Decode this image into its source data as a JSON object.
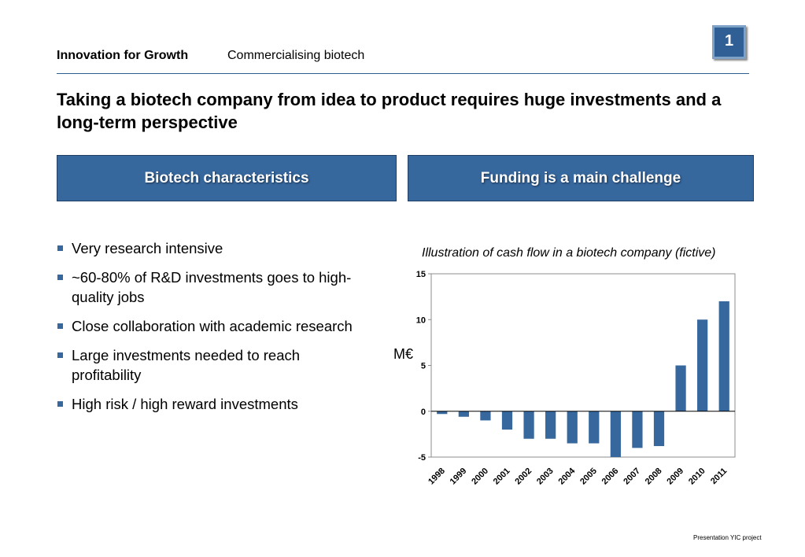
{
  "header": {
    "section": "Innovation for Growth",
    "subtitle": "Commercialising biotech",
    "page_number": "1"
  },
  "title": "Taking a biotech company from idea to product requires huge investments and a long-term perspective",
  "banners": {
    "left": "Biotech characteristics",
    "right": "Funding is a main challenge"
  },
  "bullets": [
    "Very research intensive",
    "~60-80% of R&D investments goes to high-quality jobs",
    "Close collaboration with academic research",
    "Large investments needed to reach profitability",
    "High risk / high reward investments"
  ],
  "chart": {
    "caption": "Illustration of cash flow in a biotech company (fictive)",
    "unit": "M€"
  },
  "chart_data": {
    "type": "bar",
    "categories": [
      "1998",
      "1999",
      "2000",
      "2001",
      "2002",
      "2003",
      "2004",
      "2005",
      "2006",
      "2007",
      "2008",
      "2009",
      "2010",
      "2011"
    ],
    "values": [
      -0.3,
      -0.6,
      -1,
      -2,
      -3,
      -3,
      -3.5,
      -3.5,
      -5,
      -4,
      -3.8,
      5,
      10,
      12
    ],
    "ylim": [
      -5,
      15
    ],
    "yticks": [
      -5,
      0,
      5,
      10,
      15
    ],
    "ylabel": "M€",
    "bar_color": "#36679d",
    "grid": false
  },
  "footer": "Presentation YIC project",
  "colors": {
    "accent": "#36679d",
    "rule": "#2e5d8f"
  }
}
